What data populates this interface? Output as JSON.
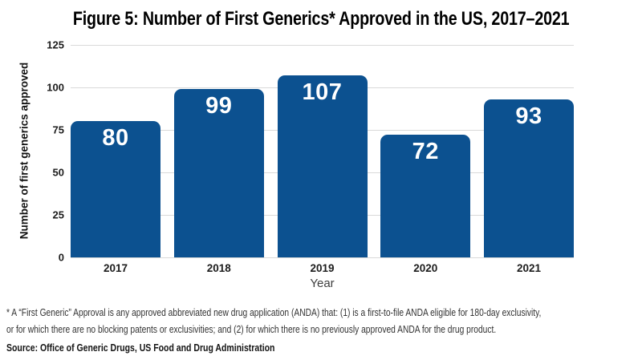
{
  "title": "Figure 5: Number of First Generics* Approved in the US, 2017–2021",
  "chart_data": {
    "type": "bar",
    "title": "Figure 5: Number of First Generics* Approved in the US, 2017–2021",
    "categories": [
      "2017",
      "2018",
      "2019",
      "2020",
      "2021"
    ],
    "values": [
      80,
      99,
      107,
      72,
      93
    ],
    "xlabel": "Year",
    "ylabel": "Number of first generics approved",
    "ylim": [
      0,
      125
    ],
    "yticks": [
      0,
      25,
      50,
      75,
      100,
      125
    ],
    "grid": "horizontal",
    "legend": "none",
    "value_labels_position": "inside-top",
    "colors": {
      "bar": "#0c5190",
      "gridline": "#d9d9d9",
      "value_label": "#ffffff"
    }
  },
  "footnote": {
    "lines": [
      "* A “First Generic” Approval is any approved abbreviated new drug application (ANDA) that: (1) is a first-to-file ANDA eligible for 180-day exclusivity,",
      "or for which there are no blocking patents or exclusivities; and (2) for which there is no previously approved ANDA for the drug product."
    ]
  },
  "source": "Source: Office of Generic Drugs, US Food and Drug Administration"
}
